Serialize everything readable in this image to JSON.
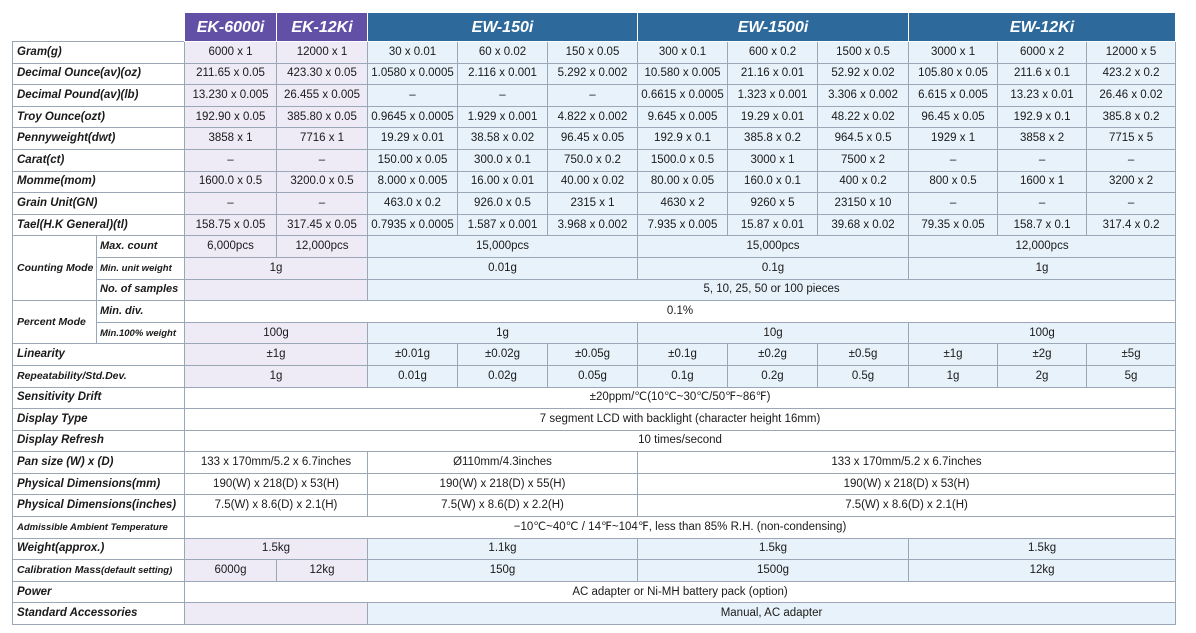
{
  "models": {
    "ek6000i": "EK-6000i",
    "ek12ki": "EK-12Ki",
    "ew150i": "EW-150i",
    "ew1500i": "EW-1500i",
    "ew12ki": "EW-12Ki"
  },
  "unit_rows": [
    {
      "label": "Gram(g)",
      "values": [
        "6000 x 1",
        "12000 x 1",
        "30 x 0.01",
        "60 x 0.02",
        "150 x 0.05",
        "300 x 0.1",
        "600 x 0.2",
        "1500 x 0.5",
        "3000 x 1",
        "6000 x 2",
        "12000 x 5"
      ]
    },
    {
      "label": "Decimal Ounce(av)(oz)",
      "values": [
        "211.65 x 0.05",
        "423.30 x 0.05",
        "1.0580 x 0.0005",
        "2.116 x 0.001",
        "5.292 x 0.002",
        "10.580 x 0.005",
        "21.16 x 0.01",
        "52.92 x 0.02",
        "105.80 x 0.05",
        "211.6 x 0.1",
        "423.2 x 0.2"
      ]
    },
    {
      "label": "Decimal Pound(av)(lb)",
      "values": [
        "13.230 x 0.005",
        "26.455 x 0.005",
        "–",
        "–",
        "–",
        "0.6615 x 0.0005",
        "1.323 x 0.001",
        "3.306 x 0.002",
        "6.615 x 0.005",
        "13.23 x 0.01",
        "26.46 x 0.02"
      ]
    },
    {
      "label": "Troy Ounce(ozt)",
      "values": [
        "192.90 x 0.05",
        "385.80 x 0.05",
        "0.9645 x 0.0005",
        "1.929 x 0.001",
        "4.822 x 0.002",
        "9.645 x 0.005",
        "19.29 x 0.01",
        "48.22 x 0.02",
        "96.45 x 0.05",
        "192.9 x 0.1",
        "385.8 x 0.2"
      ]
    },
    {
      "label": "Pennyweight(dwt)",
      "values": [
        "3858 x 1",
        "7716 x 1",
        "19.29 x 0.01",
        "38.58 x 0.02",
        "96.45 x 0.05",
        "192.9 x 0.1",
        "385.8 x 0.2",
        "964.5 x 0.5",
        "1929 x 1",
        "3858 x 2",
        "7715 x 5"
      ]
    },
    {
      "label": "Carat(ct)",
      "values": [
        "–",
        "–",
        "150.00 x 0.05",
        "300.0 x 0.1",
        "750.0 x 0.2",
        "1500.0 x 0.5",
        "3000 x 1",
        "7500 x 2",
        "–",
        "–",
        "–"
      ]
    },
    {
      "label": "Momme(mom)",
      "values": [
        "1600.0 x 0.5",
        "3200.0 x 0.5",
        "8.000 x 0.005",
        "16.00 x 0.01",
        "40.00 x 0.02",
        "80.00 x 0.05",
        "160.0 x 0.1",
        "400 x 0.2",
        "800 x 0.5",
        "1600 x 1",
        "3200 x 2"
      ]
    },
    {
      "label": "Grain Unit(GN)",
      "values": [
        "–",
        "–",
        "463.0 x 0.2",
        "926.0 x 0.5",
        "2315 x 1",
        "4630 x 2",
        "9260 x 5",
        "23150 x 10",
        "–",
        "–",
        "–"
      ]
    },
    {
      "label": "Tael(H.K General)(tl)",
      "values": [
        "158.75 x 0.05",
        "317.45 x 0.05",
        "0.7935 x 0.0005",
        "1.587 x 0.001",
        "3.968 x 0.002",
        "7.935 x 0.005",
        "15.87 x 0.01",
        "39.68 x 0.02",
        "79.35 x 0.05",
        "158.7 x 0.1",
        "317.4 x 0.2"
      ]
    }
  ],
  "counting": {
    "label": "Counting Mode",
    "max_count": {
      "label": "Max. count",
      "ek6000i": "6,000pcs",
      "ek12ki": "12,000pcs",
      "ew150i": "15,000pcs",
      "ew1500i": "15,000pcs",
      "ew12ki": "12,000pcs"
    },
    "min_unit": {
      "label": "Min. unit weight",
      "ek": "1g",
      "ew150i": "0.01g",
      "ew1500i": "0.1g",
      "ew12ki": "1g"
    },
    "samples": {
      "label": "No. of samples",
      "value": "5, 10, 25, 50 or 100 pieces"
    }
  },
  "percent": {
    "label": "Percent Mode",
    "min_div": {
      "label": "Min. div.",
      "value": "0.1%"
    },
    "min_weight": {
      "label": "Min.100% weight",
      "ek": "100g",
      "ew150i": "1g",
      "ew1500i": "10g",
      "ew12ki": "100g"
    }
  },
  "linearity": {
    "label": "Linearity",
    "ek": "±1g",
    "ew": [
      "±0.01g",
      "±0.02g",
      "±0.05g",
      "±0.1g",
      "±0.2g",
      "±0.5g",
      "±1g",
      "±2g",
      "±5g"
    ]
  },
  "repeatability": {
    "label": "Repeatability/Std.Dev.",
    "ek": "1g",
    "ew": [
      "0.01g",
      "0.02g",
      "0.05g",
      "0.1g",
      "0.2g",
      "0.5g",
      "1g",
      "2g",
      "5g"
    ]
  },
  "sensitivity": {
    "label": "Sensitivity Drift",
    "value": "±20ppm/℃(10℃~30℃/50℉~86℉)"
  },
  "display_type": {
    "label": "Display Type",
    "value": "7 segment LCD with backlight (character height 16mm)"
  },
  "display_refresh": {
    "label": "Display Refresh",
    "value": "10 times/second"
  },
  "pan": {
    "label": "Pan size (W) x (D)",
    "ek": "133 x 170mm/5.2 x 6.7inches",
    "ew150i": "Ø110mm/4.3inches",
    "ew_large": "133 x 170mm/5.2 x 6.7inches"
  },
  "dims_mm": {
    "label": "Physical Dimensions(mm)",
    "ek": "190(W) x 218(D) x 53(H)",
    "ew150i": "190(W) x 218(D) x 55(H)",
    "ew_large": "190(W) x 218(D) x 53(H)"
  },
  "dims_in": {
    "label": "Physical Dimensions(inches)",
    "ek": "7.5(W) x 8.6(D) x 2.1(H)",
    "ew150i": "7.5(W) x 8.6(D) x 2.2(H)",
    "ew_large": "7.5(W) x 8.6(D) x 2.1(H)"
  },
  "ambient": {
    "label": "Admissible Ambient Temperature",
    "value": "−10℃~40℃ / 14℉~104℉, less than 85% R.H. (non-condensing)"
  },
  "weight": {
    "label": "Weight(approx.)",
    "ek": "1.5kg",
    "ew150i": "1.1kg",
    "ew1500i": "1.5kg",
    "ew12ki": "1.5kg"
  },
  "calibration": {
    "label_main": "Calibration Mass",
    "label_sub": "(default setting)",
    "ek6000i": "6000g",
    "ek12ki": "12kg",
    "ew150i": "150g",
    "ew1500i": "1500g",
    "ew12ki": "12kg"
  },
  "power": {
    "label": "Power",
    "value": "AC adapter or Ni-MH battery pack (option)"
  },
  "accessories": {
    "label": "Standard Accessories",
    "value": "Manual, AC adapter"
  }
}
